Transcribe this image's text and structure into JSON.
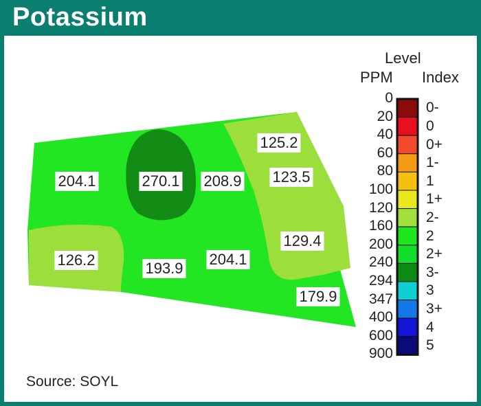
{
  "title": "Potassium",
  "source": "Source: SOYL",
  "legend": {
    "heading_top": "Level",
    "heading_ppm": "PPM",
    "heading_index": "Index",
    "ppm_values": [
      "0",
      "20",
      "40",
      "60",
      "80",
      "100",
      "120",
      "160",
      "200",
      "240",
      "294",
      "347",
      "400",
      "600",
      "900"
    ],
    "bands": [
      {
        "index": "0-",
        "color": "#8b0a0a"
      },
      {
        "index": "0",
        "color": "#e8101e"
      },
      {
        "index": "0+",
        "color": "#f24a2a"
      },
      {
        "index": "1-",
        "color": "#f59a14"
      },
      {
        "index": "1",
        "color": "#f7c010"
      },
      {
        "index": "1+",
        "color": "#e8e81c"
      },
      {
        "index": "2-",
        "color": "#a3e03c"
      },
      {
        "index": "2",
        "color": "#1ee61e"
      },
      {
        "index": "2+",
        "color": "#12dd2a"
      },
      {
        "index": "3-",
        "color": "#0b8a14"
      },
      {
        "index": "3",
        "color": "#10cfd2"
      },
      {
        "index": "3+",
        "color": "#1478e8"
      },
      {
        "index": "4",
        "color": "#1414d8"
      },
      {
        "index": "5",
        "color": "#0a0a78"
      }
    ]
  },
  "zone_colors": {
    "field_base": "#22e622",
    "low": "#9cde3c",
    "high": "#128c14",
    "border": "#0a7f6f"
  },
  "labels": [
    {
      "value": "204.1"
    },
    {
      "value": "270.1"
    },
    {
      "value": "208.9"
    },
    {
      "value": "125.2"
    },
    {
      "value": "123.5"
    },
    {
      "value": "129.4"
    },
    {
      "value": "126.2"
    },
    {
      "value": "193.9"
    },
    {
      "value": "204.1"
    },
    {
      "value": "179.9"
    }
  ]
}
